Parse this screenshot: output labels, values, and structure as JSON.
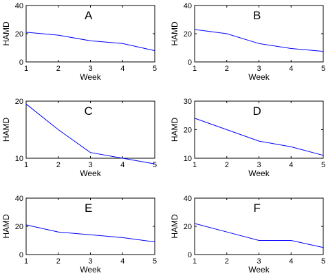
{
  "chart_data": [
    {
      "type": "line",
      "title": "A",
      "xlabel": "Week",
      "ylabel": "HAMD",
      "xlim": [
        1,
        5
      ],
      "ylim": [
        0,
        40
      ],
      "xticks": [
        "1",
        "2",
        "3",
        "4",
        "5"
      ],
      "yticks": [
        "0",
        "20",
        "40"
      ],
      "x": [
        1,
        2,
        3,
        4,
        5
      ],
      "values": [
        21,
        19,
        15,
        13,
        8
      ],
      "line_color": "#0000ff"
    },
    {
      "type": "line",
      "title": "B",
      "xlabel": "Week",
      "ylabel": "HAMD",
      "xlim": [
        1,
        5
      ],
      "ylim": [
        0,
        40
      ],
      "xticks": [
        "1",
        "2",
        "3",
        "4",
        "5"
      ],
      "yticks": [
        "0",
        "20",
        "40"
      ],
      "x": [
        1,
        2,
        3,
        4,
        5
      ],
      "values": [
        23,
        20,
        13,
        9.5,
        7.5
      ],
      "line_color": "#0000ff"
    },
    {
      "type": "line",
      "title": "C",
      "xlabel": "Week",
      "ylabel": "HAMD",
      "xlim": [
        1,
        5
      ],
      "ylim": [
        10,
        20
      ],
      "xticks": [
        "1",
        "2",
        "3",
        "4",
        "5"
      ],
      "yticks": [
        "10",
        "20"
      ],
      "x": [
        1,
        2,
        3,
        4,
        5
      ],
      "values": [
        19.5,
        15,
        11,
        10,
        9
      ],
      "line_color": "#0000ff"
    },
    {
      "type": "line",
      "title": "D",
      "xlabel": "Week",
      "ylabel": "HAMD",
      "xlim": [
        1,
        5
      ],
      "ylim": [
        10,
        30
      ],
      "xticks": [
        "1",
        "2",
        "3",
        "4",
        "5"
      ],
      "yticks": [
        "10",
        "20",
        "30"
      ],
      "x": [
        1,
        2,
        3,
        4,
        5
      ],
      "values": [
        24,
        20,
        16,
        14,
        11
      ],
      "line_color": "#0000ff"
    },
    {
      "type": "line",
      "title": "E",
      "xlabel": "Week",
      "ylabel": "HAMD",
      "xlim": [
        1,
        5
      ],
      "ylim": [
        0,
        40
      ],
      "xticks": [
        "1",
        "2",
        "3",
        "4",
        "5"
      ],
      "yticks": [
        "0",
        "20",
        "40"
      ],
      "x": [
        1,
        2,
        3,
        4,
        5
      ],
      "values": [
        21,
        16,
        14,
        12,
        9
      ],
      "line_color": "#0000ff"
    },
    {
      "type": "line",
      "title": "F",
      "xlabel": "Week",
      "ylabel": "HAMD",
      "xlim": [
        1,
        5
      ],
      "ylim": [
        0,
        40
      ],
      "xticks": [
        "1",
        "2",
        "3",
        "4",
        "5"
      ],
      "yticks": [
        "0",
        "20",
        "40"
      ],
      "x": [
        1,
        2,
        3,
        4,
        5
      ],
      "values": [
        22,
        16,
        10,
        10,
        5
      ],
      "line_color": "#0000ff"
    }
  ]
}
